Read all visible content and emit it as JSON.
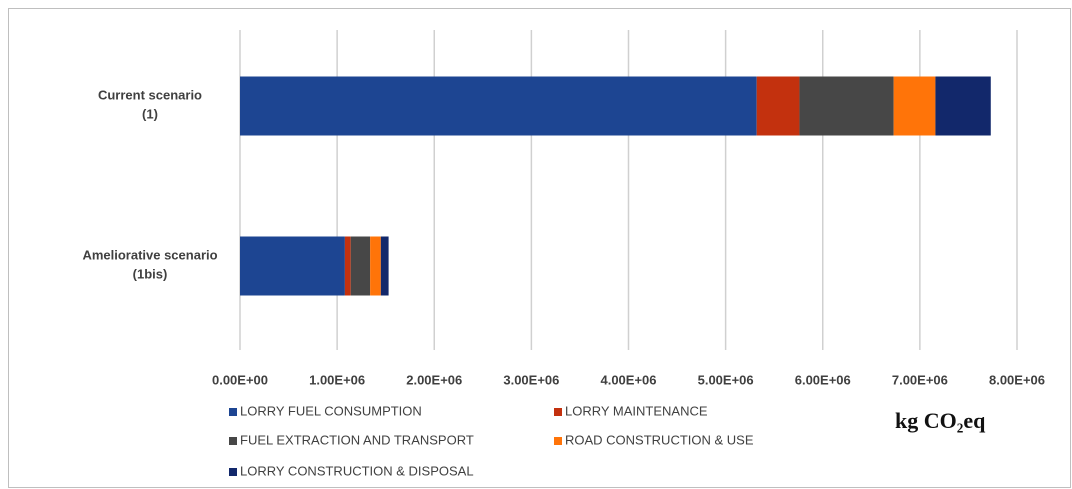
{
  "chart_data": {
    "type": "stacked-barh",
    "categories": [
      "Current scenario\n(1)",
      "Ameliorative scenario\n(1bis)"
    ],
    "series": [
      {
        "name": "LORRY FUEL CONSUMPTION",
        "color": "#1d4592",
        "values": [
          5320000,
          1080000
        ]
      },
      {
        "name": "LORRY MAINTENANCE",
        "color": "#c3310e",
        "values": [
          440000,
          60000
        ]
      },
      {
        "name": "FUEL EXTRACTION AND TRANSPORT",
        "color": "#474747",
        "values": [
          970000,
          200000
        ]
      },
      {
        "name": "ROAD CONSTRUCTION & USE",
        "color": "#ff7409",
        "values": [
          430000,
          110000
        ]
      },
      {
        "name": "LORRY CONSTRUCTION & DISPOSAL",
        "color": "#12286b",
        "values": [
          570000,
          80000
        ]
      }
    ],
    "xlabel": "kg CO₂eq",
    "xlim": [
      0,
      8000000
    ],
    "xticks": [
      {
        "value": 0,
        "label": "0.00E+00"
      },
      {
        "value": 1000000,
        "label": "1.00E+06"
      },
      {
        "value": 2000000,
        "label": "2.00E+06"
      },
      {
        "value": 3000000,
        "label": "3.00E+06"
      },
      {
        "value": 4000000,
        "label": "4.00E+06"
      },
      {
        "value": 5000000,
        "label": "5.00E+06"
      },
      {
        "value": 6000000,
        "label": "6.00E+06"
      },
      {
        "value": 7000000,
        "label": "7.00E+06"
      },
      {
        "value": 8000000,
        "label": "8.00E+06"
      }
    ],
    "grid": true,
    "legend": "bottom"
  }
}
